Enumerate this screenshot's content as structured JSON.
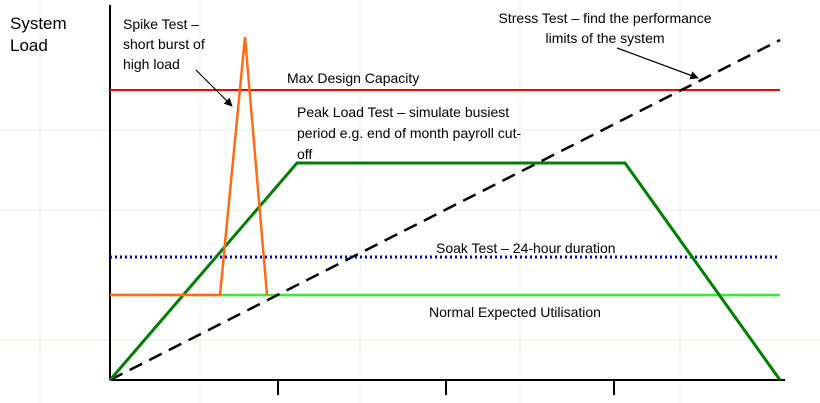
{
  "axis": {
    "y_label": "System\nLoad"
  },
  "labels": {
    "spike": "Spike Test –\nshort burst of\nhigh load",
    "stress": "Stress Test – find the performance\nlimits of the system",
    "max_capacity": "Max Design Capacity",
    "peak": "Peak Load Test – simulate busiest\nperiod e.g. end of month payroll cut-\noff",
    "soak": "Soak Test – 24-hour duration",
    "normal": "Normal Expected Utilisation"
  },
  "colors": {
    "max_capacity": "#ff0000",
    "peak": "#008000",
    "stress": "#000000",
    "soak": "#0000cc",
    "normal": "#33ee33",
    "spike": "#ff6a13",
    "axis": "#000000",
    "grid": "#b8e0b8"
  }
}
